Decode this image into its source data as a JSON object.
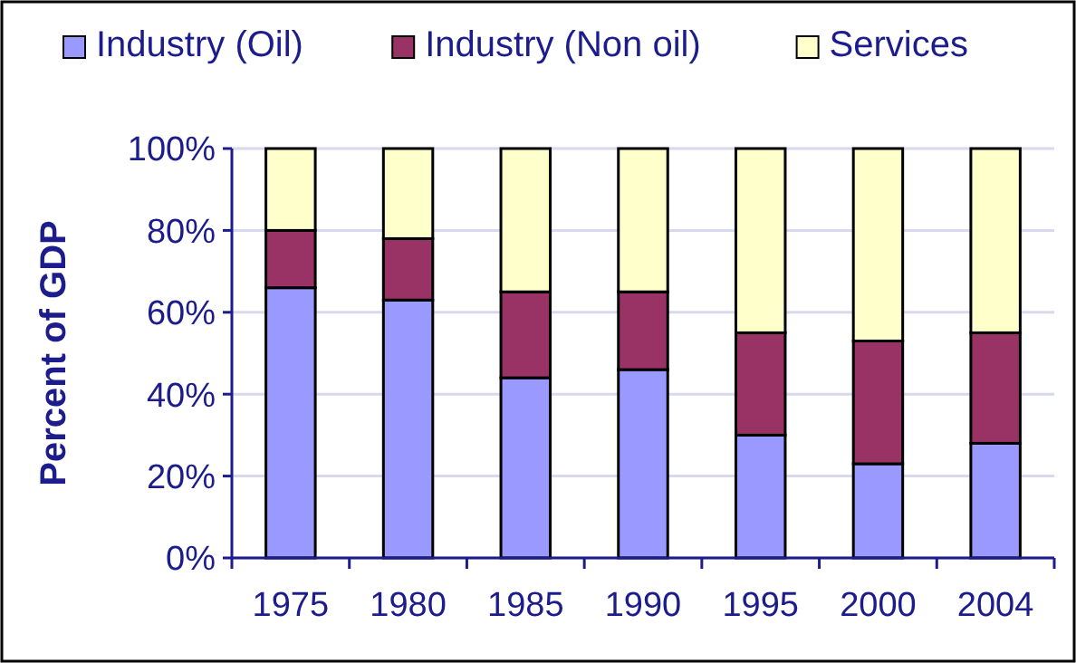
{
  "chart_data": {
    "type": "bar",
    "stacked": true,
    "ylabel": "Percent of GDP",
    "categories": [
      "1975",
      "1980",
      "1985",
      "1990",
      "1995",
      "2000",
      "2004"
    ],
    "series": [
      {
        "name": "Industry (Oil)",
        "color": "#9999ff",
        "values": [
          66,
          63,
          44,
          46,
          30,
          23,
          28
        ]
      },
      {
        "name": "Industry (Non oil)",
        "color": "#993366",
        "values": [
          14,
          15,
          21,
          19,
          25,
          30,
          27
        ]
      },
      {
        "name": "Services",
        "color": "#ffffcc",
        "values": [
          20,
          22,
          35,
          35,
          45,
          47,
          45
        ]
      }
    ],
    "ylim": [
      0,
      100
    ],
    "yticks": [
      {
        "value": 0,
        "label": "0%"
      },
      {
        "value": 20,
        "label": "20%"
      },
      {
        "value": 40,
        "label": "40%"
      },
      {
        "value": 60,
        "label": "60%"
      },
      {
        "value": 80,
        "label": "80%"
      },
      {
        "value": 100,
        "label": "100%"
      }
    ],
    "grid": "y",
    "legend": "top"
  }
}
